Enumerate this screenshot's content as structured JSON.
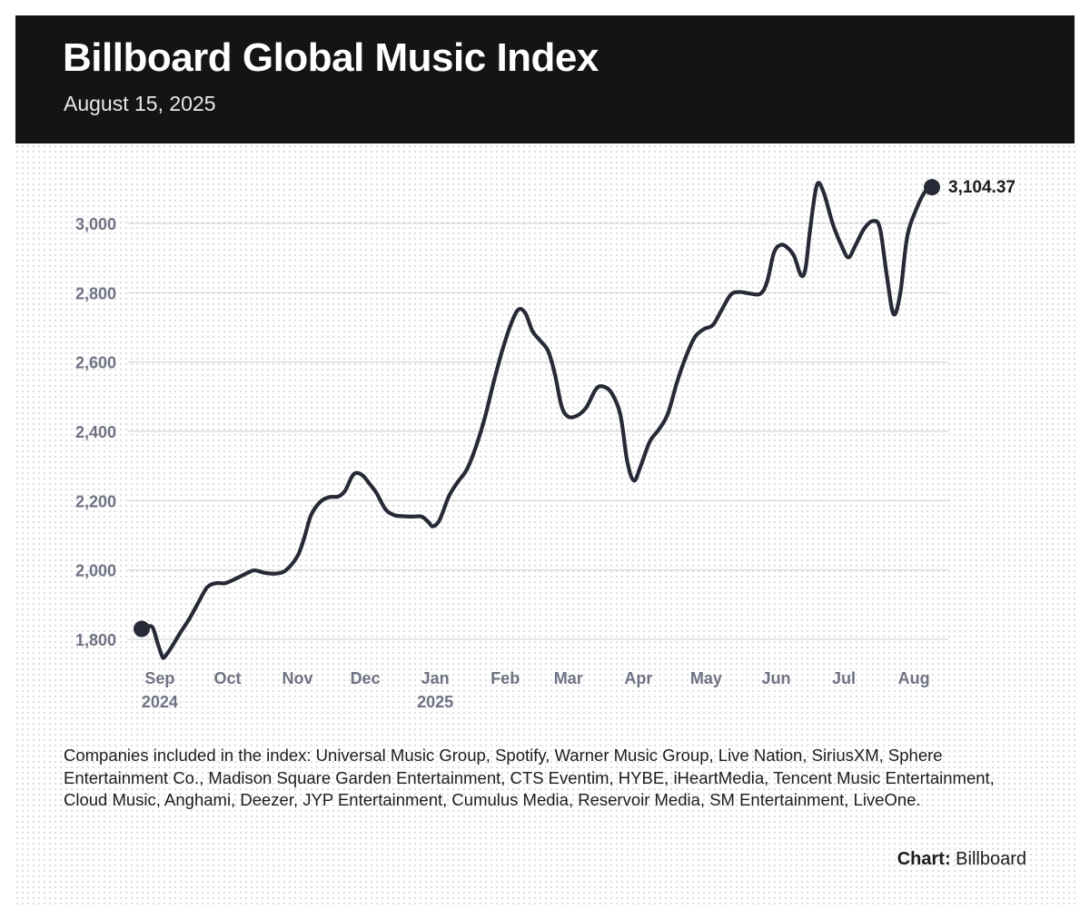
{
  "header": {
    "title": "Billboard Global Music Index",
    "subtitle": "August 15, 2025"
  },
  "colors": {
    "header_bg": "#141414",
    "line": "#262936",
    "axis_text": "#6e7282",
    "grid": "#d6d6d6"
  },
  "chart_data": {
    "type": "line",
    "title": "Billboard Global Music Index",
    "subtitle": "August 15, 2025",
    "xlabel": "",
    "ylabel": "",
    "ylim": [
      1730,
      3130
    ],
    "xlim": [
      "2024-08-27",
      "2025-08-22"
    ],
    "grid": true,
    "y_ticks": [
      1800,
      2000,
      2200,
      2400,
      2600,
      2800,
      3000
    ],
    "y_tick_labels": [
      "1,800",
      "2,000",
      "2,200",
      "2,400",
      "2,600",
      "2,800",
      "3,000"
    ],
    "x_ticks": [
      {
        "date": "2024-09-07",
        "label": "Sep",
        "sublabel": "2024"
      },
      {
        "date": "2024-10-07",
        "label": "Oct",
        "sublabel": ""
      },
      {
        "date": "2024-11-07",
        "label": "Nov",
        "sublabel": ""
      },
      {
        "date": "2024-12-07",
        "label": "Dec",
        "sublabel": ""
      },
      {
        "date": "2025-01-07",
        "label": "Jan",
        "sublabel": "2025"
      },
      {
        "date": "2025-02-07",
        "label": "Feb",
        "sublabel": ""
      },
      {
        "date": "2025-03-07",
        "label": "Mar",
        "sublabel": ""
      },
      {
        "date": "2025-04-07",
        "label": "Apr",
        "sublabel": ""
      },
      {
        "date": "2025-05-07",
        "label": "May",
        "sublabel": ""
      },
      {
        "date": "2025-06-07",
        "label": "Jun",
        "sublabel": ""
      },
      {
        "date": "2025-07-07",
        "label": "Jul",
        "sublabel": ""
      },
      {
        "date": "2025-08-07",
        "label": "Aug",
        "sublabel": ""
      }
    ],
    "series": [
      {
        "points": [
          {
            "x": "2024-08-30",
            "y": 1830
          },
          {
            "x": "2024-09-02",
            "y": 1838
          },
          {
            "x": "2024-09-04",
            "y": 1832
          },
          {
            "x": "2024-09-06",
            "y": 1790
          },
          {
            "x": "2024-09-08",
            "y": 1752
          },
          {
            "x": "2024-09-09",
            "y": 1748
          },
          {
            "x": "2024-09-12",
            "y": 1775
          },
          {
            "x": "2024-09-16",
            "y": 1818
          },
          {
            "x": "2024-09-20",
            "y": 1858
          },
          {
            "x": "2024-09-24",
            "y": 1905
          },
          {
            "x": "2024-09-28",
            "y": 1950
          },
          {
            "x": "2024-10-02",
            "y": 1962
          },
          {
            "x": "2024-10-06",
            "y": 1962
          },
          {
            "x": "2024-10-11",
            "y": 1976
          },
          {
            "x": "2024-10-16",
            "y": 1992
          },
          {
            "x": "2024-10-19",
            "y": 1999
          },
          {
            "x": "2024-10-24",
            "y": 1991
          },
          {
            "x": "2024-10-29",
            "y": 1990
          },
          {
            "x": "2024-11-02",
            "y": 2000
          },
          {
            "x": "2024-11-07",
            "y": 2040
          },
          {
            "x": "2024-11-10",
            "y": 2093
          },
          {
            "x": "2024-11-13",
            "y": 2158
          },
          {
            "x": "2024-11-17",
            "y": 2196
          },
          {
            "x": "2024-11-21",
            "y": 2210
          },
          {
            "x": "2024-11-25",
            "y": 2212
          },
          {
            "x": "2024-11-28",
            "y": 2228
          },
          {
            "x": "2024-12-01",
            "y": 2268
          },
          {
            "x": "2024-12-03",
            "y": 2280
          },
          {
            "x": "2024-12-06",
            "y": 2272
          },
          {
            "x": "2024-12-09",
            "y": 2248
          },
          {
            "x": "2024-12-12",
            "y": 2222
          },
          {
            "x": "2024-12-16",
            "y": 2175
          },
          {
            "x": "2024-12-20",
            "y": 2158
          },
          {
            "x": "2024-12-24",
            "y": 2155
          },
          {
            "x": "2024-12-28",
            "y": 2154
          },
          {
            "x": "2025-01-01",
            "y": 2154
          },
          {
            "x": "2025-01-04",
            "y": 2138
          },
          {
            "x": "2025-01-06",
            "y": 2126
          },
          {
            "x": "2025-01-09",
            "y": 2145
          },
          {
            "x": "2025-01-13",
            "y": 2212
          },
          {
            "x": "2025-01-17",
            "y": 2254
          },
          {
            "x": "2025-01-21",
            "y": 2290
          },
          {
            "x": "2025-01-25",
            "y": 2355
          },
          {
            "x": "2025-01-29",
            "y": 2440
          },
          {
            "x": "2025-02-02",
            "y": 2545
          },
          {
            "x": "2025-02-06",
            "y": 2640
          },
          {
            "x": "2025-02-10",
            "y": 2717
          },
          {
            "x": "2025-02-13",
            "y": 2752
          },
          {
            "x": "2025-02-16",
            "y": 2740
          },
          {
            "x": "2025-02-19",
            "y": 2690
          },
          {
            "x": "2025-02-22",
            "y": 2665
          },
          {
            "x": "2025-02-26",
            "y": 2632
          },
          {
            "x": "2025-03-01",
            "y": 2565
          },
          {
            "x": "2025-03-04",
            "y": 2472
          },
          {
            "x": "2025-03-07",
            "y": 2442
          },
          {
            "x": "2025-03-11",
            "y": 2446
          },
          {
            "x": "2025-03-15",
            "y": 2470
          },
          {
            "x": "2025-03-19",
            "y": 2520
          },
          {
            "x": "2025-03-22",
            "y": 2530
          },
          {
            "x": "2025-03-26",
            "y": 2512
          },
          {
            "x": "2025-03-30",
            "y": 2448
          },
          {
            "x": "2025-04-02",
            "y": 2315
          },
          {
            "x": "2025-04-05",
            "y": 2258
          },
          {
            "x": "2025-04-08",
            "y": 2300
          },
          {
            "x": "2025-04-12",
            "y": 2370
          },
          {
            "x": "2025-04-16",
            "y": 2405
          },
          {
            "x": "2025-04-20",
            "y": 2450
          },
          {
            "x": "2025-04-24",
            "y": 2540
          },
          {
            "x": "2025-04-28",
            "y": 2615
          },
          {
            "x": "2025-05-02",
            "y": 2672
          },
          {
            "x": "2025-05-06",
            "y": 2695
          },
          {
            "x": "2025-05-10",
            "y": 2707
          },
          {
            "x": "2025-05-14",
            "y": 2752
          },
          {
            "x": "2025-05-18",
            "y": 2795
          },
          {
            "x": "2025-05-22",
            "y": 2802
          },
          {
            "x": "2025-05-26",
            "y": 2798
          },
          {
            "x": "2025-05-31",
            "y": 2797
          },
          {
            "x": "2025-06-03",
            "y": 2832
          },
          {
            "x": "2025-06-06",
            "y": 2915
          },
          {
            "x": "2025-06-09",
            "y": 2938
          },
          {
            "x": "2025-06-12",
            "y": 2930
          },
          {
            "x": "2025-06-15",
            "y": 2905
          },
          {
            "x": "2025-06-18",
            "y": 2850
          },
          {
            "x": "2025-06-20",
            "y": 2870
          },
          {
            "x": "2025-06-22",
            "y": 2980
          },
          {
            "x": "2025-06-25",
            "y": 3110
          },
          {
            "x": "2025-06-28",
            "y": 3090
          },
          {
            "x": "2025-07-02",
            "y": 3000
          },
          {
            "x": "2025-07-06",
            "y": 2935
          },
          {
            "x": "2025-07-09",
            "y": 2902
          },
          {
            "x": "2025-07-12",
            "y": 2935
          },
          {
            "x": "2025-07-16",
            "y": 2985
          },
          {
            "x": "2025-07-20",
            "y": 3007
          },
          {
            "x": "2025-07-23",
            "y": 2985
          },
          {
            "x": "2025-07-26",
            "y": 2850
          },
          {
            "x": "2025-07-29",
            "y": 2738
          },
          {
            "x": "2025-08-01",
            "y": 2800
          },
          {
            "x": "2025-08-04",
            "y": 2960
          },
          {
            "x": "2025-08-08",
            "y": 3040
          },
          {
            "x": "2025-08-12",
            "y": 3092
          },
          {
            "x": "2025-08-15",
            "y": 3104.37
          }
        ]
      }
    ],
    "end_label": "3,104.37"
  },
  "footer": {
    "companies_text": "Companies included in the index: Universal Music Group, Spotify, Warner Music Group, Live Nation, SiriusXM, Sphere Entertainment Co., Madison Square Garden Entertainment, CTS Eventim, HYBE, iHeartMedia, Tencent Music Entertainment, Cloud Music, Anghami, Deezer, JYP Entertainment, Cumulus Media, Reservoir Media, SM Entertainment, LiveOne.",
    "credit_label": "Chart:",
    "credit_source": "Billboard"
  }
}
